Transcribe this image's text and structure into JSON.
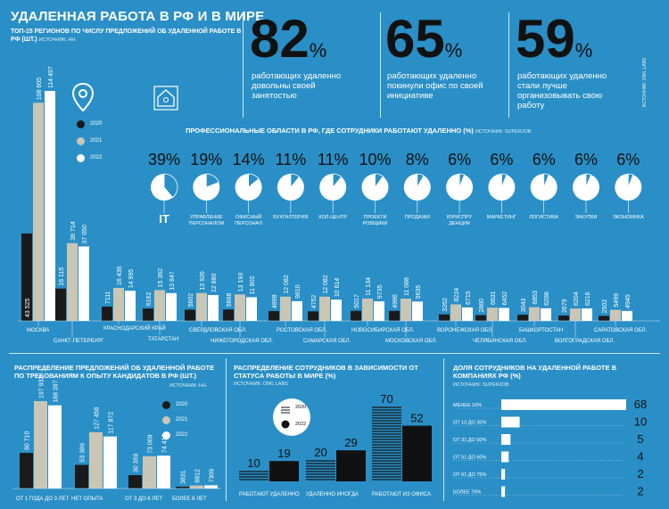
{
  "header": {
    "title": "УДАЛЕННАЯ РАБОТА В РФ И В МИРЕ",
    "subtitle": "ТОП-15 РЕГИОНОВ ПО ЧИСЛУ ПРЕДЛОЖЕНИЙ ОБ УДАЛЕННОЙ РАБОТЕ В РФ (ШТ.)",
    "source": "ИСТОЧНИК: HH.",
    "side_source": "ИСТОЧНИК: OWL LABS"
  },
  "stats": [
    {
      "num": "82",
      "pct": "%",
      "text": "работающих удаленно довольны своей занятостью"
    },
    {
      "num": "65",
      "pct": "%",
      "text": "работающих удаленно покинули офис по своей инициативе"
    },
    {
      "num": "59",
      "pct": "%",
      "text": "работающих удаленно стали лучше организовывать свою работу"
    }
  ],
  "colors": {
    "background": "#2a8fc6",
    "y2020": "#1a1a1a",
    "y2021": "#c9c6b5",
    "y2022": "#ffffff",
    "dark": "#111111"
  },
  "icons": [
    "location-pin-icon",
    "house-icon"
  ],
  "chart_data": [
    {
      "type": "bar",
      "title": "ТОП-15 РЕГИОНОВ ПО ЧИСЛУ ПРЕДЛОЖЕНИЙ ОБ УДАЛЕННОЙ РАБОТЕ В РФ (ШТ.)",
      "legend": [
        "2020",
        "2021",
        "2022"
      ],
      "categories": [
        "МОСКВА",
        "САНКТ-ПЕТЕРБУРГ",
        "КРАСНОДАРСКИЙ КРАЙ",
        "ТАТАРСТАН",
        "СВЕРДЛОВСКАЯ ОБЛ.",
        "НИЖЕГОРОДСКАЯ ОБЛ.",
        "РОСТОВСКАЯ ОБЛ.",
        "САМАРСКАЯ ОБЛ.",
        "НОВОСИБИРСКАЯ ОБЛ.",
        "МОСКОВСКАЯ ОБЛ.",
        "ВОРОНЕЖСКАЯ ОБЛ.",
        "ЧЕЛЯБИНСКАЯ ОБЛ.",
        "БАШКОРТОСТАН",
        "ВОЛГОГРАДСКАЯ ОБЛ.",
        "САРАТОВСКАЯ ОБЛ."
      ],
      "series": [
        {
          "name": "2020",
          "values": [
            43525,
            16115,
            7111,
            6162,
            5602,
            5668,
            4898,
            4752,
            5017,
            4986,
            3262,
            2860,
            3043,
            2679,
            2502
          ]
        },
        {
          "name": "2021",
          "values": [
            108605,
            38714,
            16436,
            15362,
            13926,
            13193,
            12082,
            12082,
            11134,
            11088,
            8224,
            6631,
            6853,
            6204,
            5499
          ]
        },
        {
          "name": "2022",
          "values": [
            114497,
            37050,
            14995,
            13847,
            12880,
            11802,
            9810,
            10614,
            9735,
            9635,
            6715,
            6452,
            6288,
            6216,
            4945
          ]
        }
      ],
      "labels": {
        "2020": [
          "43 525",
          "16 115",
          "7111",
          "6162",
          "5602",
          "5668",
          "4898",
          "4752",
          "5017",
          "4986",
          "3262",
          "2860",
          "3043",
          "2679",
          "2502"
        ],
        "2021": [
          "108 605",
          "38 714",
          "16 436",
          "15 362",
          "13 926",
          "13 193",
          "12 082",
          "12 082",
          "11 134",
          "11 088",
          "8224",
          "6631",
          "6853",
          "6204",
          "5499"
        ],
        "2022": [
          "114 497",
          "37 050",
          "14 995",
          "13 847",
          "12 880",
          "11 802",
          "9810",
          "10 614",
          "9735",
          "9635",
          "6715",
          "6452",
          "6288",
          "6216",
          "4945"
        ]
      }
    },
    {
      "type": "pie",
      "title": "ПРОФЕССИОНАЛЬНЫЕ ОБЛАСТИ В РФ, ГДЕ СОТРУДНИКИ РАБОТАЮТ УДАЛЕННО (%)",
      "source": "ИСТОЧНИК: SUPERJOB",
      "categories": [
        "IT",
        "УПРАВЛЕНИЕ ПЕРСОНАЛОМ",
        "ОФИСНЫЙ ПЕРСОНАЛ",
        "БУХГАЛТЕРИЯ",
        "КОЛ-ЦЕНТР",
        "ПРОЕКТИРОВЩИКИ",
        "ПРОДАЖИ",
        "ЮРИСПРУДЕНЦИЯ",
        "МАРКЕТИНГ",
        "ЛОГИСТИКА",
        "ЗАКУПКИ",
        "ЭКОНОМИКА"
      ],
      "values": [
        39,
        19,
        14,
        11,
        11,
        10,
        8,
        6,
        6,
        6,
        6,
        6
      ]
    },
    {
      "type": "bar",
      "title": "РАСПРЕДЕЛЕНИЕ ПРЕДЛОЖЕНИЙ ОБ УДАЛЕННОЙ РАБОТЕ ПО ТРЕБОВАНИЯМ К ОПЫТУ КАНДИДАТОВ В РФ (ШТ.)",
      "source": "ИСТОЧНИК: HH.",
      "legend": [
        "2020",
        "2021",
        "2022"
      ],
      "categories": [
        "ОТ 1 ГОДА ДО 3 ЛЕТ",
        "НЕТ ОПЫТА",
        "ОТ 3 ДО 6 ЛЕТ",
        "БОЛЕЕ 6 ЛЕТ"
      ],
      "series": [
        {
          "name": "2020",
          "values": [
            80710,
            53389,
            30359,
            3831
          ]
        },
        {
          "name": "2021",
          "values": [
            197932,
            127458,
            73009,
            6812
          ]
        },
        {
          "name": "2022",
          "values": [
            188397,
            117872,
            74418,
            7309
          ]
        }
      ],
      "labels": {
        "2020": [
          "80 710",
          "53 389",
          "30 359",
          "3831"
        ],
        "2021": [
          "197 932",
          "127 458",
          "73 009",
          "6812"
        ],
        "2022": [
          "188 397",
          "117 872",
          "74 418",
          "7309"
        ]
      }
    },
    {
      "type": "bar",
      "title": "РАСПРЕДЕЛЕНИЕ СОТРУДНИКОВ В ЗАВИСИМОСТИ ОТ СТАТУСА РАБОТЫ В МИРЕ (%)",
      "source": "ИСТОЧНИК: OWL LABS",
      "legend": [
        "2020",
        "2022"
      ],
      "categories": [
        "РАБОТАЮТ УДАЛЕННО",
        "УДАЛЕННО ИНОГДА",
        "РАБОТАЮТ ИЗ ОФИСА"
      ],
      "series": [
        {
          "name": "2020",
          "values": [
            10,
            20,
            70
          ]
        },
        {
          "name": "2022",
          "values": [
            19,
            29,
            52
          ]
        }
      ]
    },
    {
      "type": "bar",
      "title": "ДОЛЯ СОТРУДНИКОВ НА УДАЛЕННОЙ РАБОТЕ В КОМПАНИЯХ РФ (%)",
      "source": "ИСТОЧНИК: SUPERJOB",
      "categories": [
        "МЕНЕЕ 10%",
        "ОТ 10 ДО 30%",
        "ОТ 31 ДО 50%",
        "ОТ 51 ДО 60%",
        "ОТ 61 ДО 75%",
        "БОЛЕЕ 75%"
      ],
      "values": [
        68,
        10,
        5,
        4,
        2,
        2
      ]
    }
  ]
}
